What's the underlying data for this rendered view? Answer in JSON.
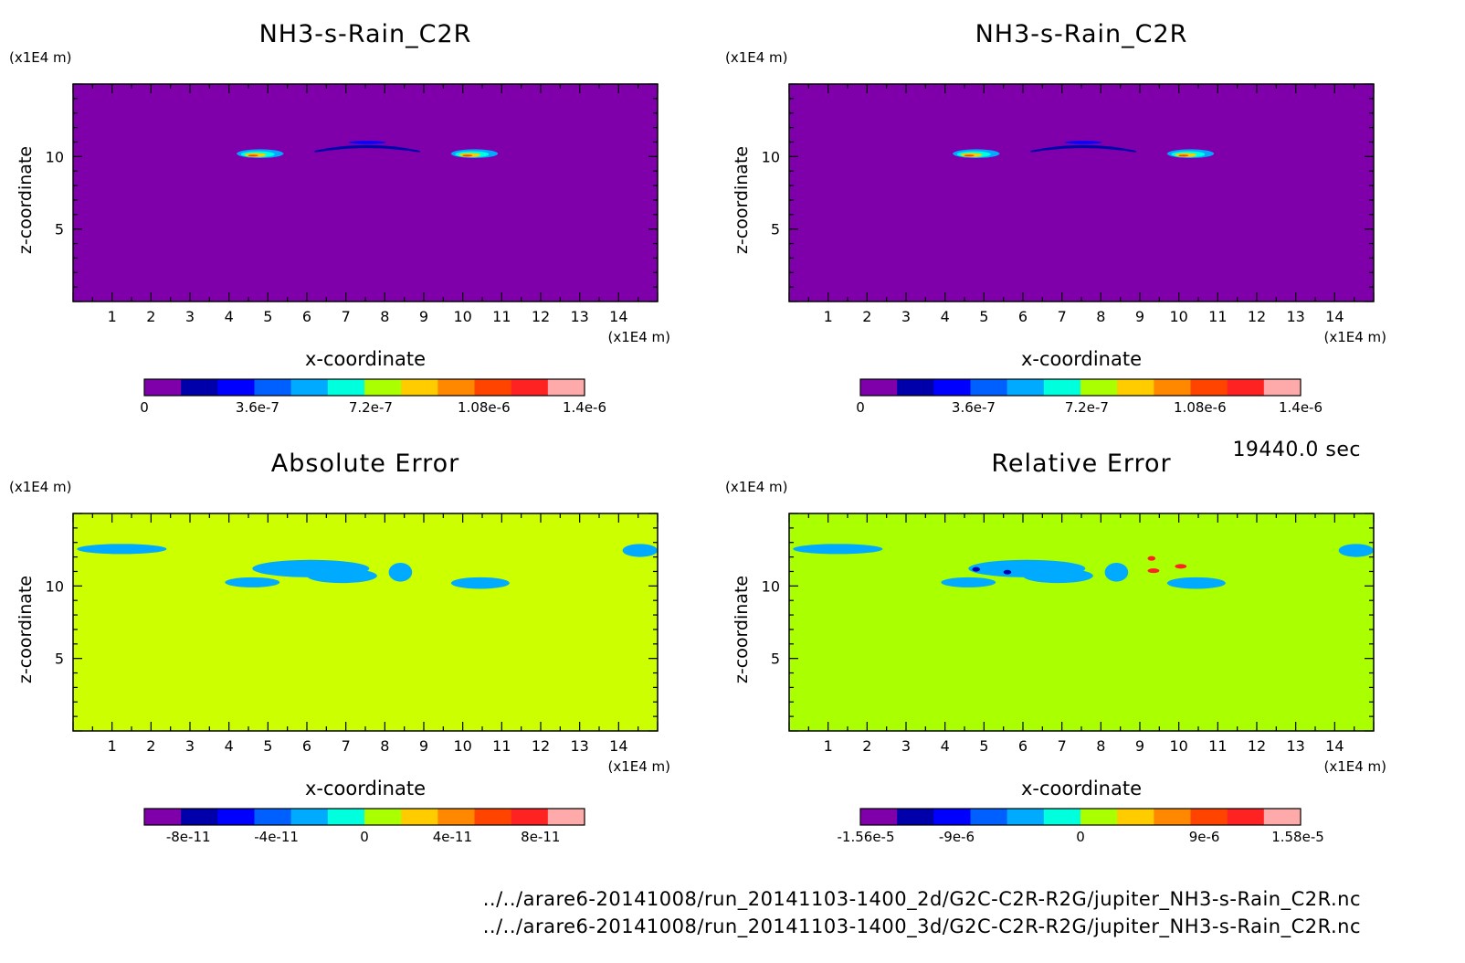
{
  "time_label": "19440.0 sec",
  "files": [
    "../../arare6-20141008/run_20141103-1400_2d/G2C-C2R-R2G/jupiter_NH3-s-Rain_C2R.nc",
    "../../arare6-20141008/run_20141103-1400_3d/G2C-C2R-R2G/jupiter_NH3-s-Rain_C2R.nc"
  ],
  "colors": {
    "frame": "#000000",
    "cmap": [
      "#7f00aa",
      "#0000aa",
      "#0000ff",
      "#0060ff",
      "#00aaff",
      "#00ffdd",
      "#aaff00",
      "#ffcc00",
      "#ff8800",
      "#ff4400",
      "#ff2222",
      "#ffaaaa"
    ]
  },
  "chart_data": [
    {
      "type": "heatmap",
      "title": "NH3-s-Rain_C2R",
      "xlabel": "x-coordinate",
      "ylabel": "z-coordinate",
      "x_unit": "(x1E4 m)",
      "y_unit": "(x1E4 m)",
      "xlim": [
        0,
        15
      ],
      "ylim": [
        0,
        15
      ],
      "xticks": [
        1,
        2,
        3,
        4,
        5,
        6,
        7,
        8,
        9,
        10,
        11,
        12,
        13,
        14
      ],
      "yticks": [
        5,
        10
      ],
      "background_level": 0,
      "features": [
        {
          "shape": "lens",
          "x": [
            4.2,
            5.4
          ],
          "z": [
            9.9,
            10.5
          ],
          "peak": 1.1e-06
        },
        {
          "shape": "band",
          "x": [
            6.2,
            8.9
          ],
          "z": [
            10.4,
            11.0
          ],
          "peak": 3.6e-07
        },
        {
          "shape": "lens",
          "x": [
            9.7,
            10.9
          ],
          "z": [
            9.9,
            10.5
          ],
          "peak": 1.1e-06
        }
      ],
      "colorbar": {
        "min": 0,
        "max": 1.4e-06,
        "labels": [
          {
            "v": 0,
            "t": "0"
          },
          {
            "v": 3.6e-07,
            "t": "3.6e-7"
          },
          {
            "v": 7.2e-07,
            "t": "7.2e-7"
          },
          {
            "v": 1.08e-06,
            "t": "1.08e-6"
          },
          {
            "v": 1.4e-06,
            "t": "1.4e-6"
          }
        ]
      }
    },
    {
      "type": "heatmap",
      "title": "NH3-s-Rain_C2R",
      "xlabel": "x-coordinate",
      "ylabel": "z-coordinate",
      "x_unit": "(x1E4 m)",
      "y_unit": "(x1E4 m)",
      "xlim": [
        0,
        15
      ],
      "ylim": [
        0,
        15
      ],
      "xticks": [
        1,
        2,
        3,
        4,
        5,
        6,
        7,
        8,
        9,
        10,
        11,
        12,
        13,
        14
      ],
      "yticks": [
        5,
        10
      ],
      "background_level": 0,
      "features": [
        {
          "shape": "lens",
          "x": [
            4.2,
            5.4
          ],
          "z": [
            9.9,
            10.5
          ],
          "peak": 1.1e-06
        },
        {
          "shape": "band",
          "x": [
            6.2,
            8.9
          ],
          "z": [
            10.4,
            11.0
          ],
          "peak": 3.6e-07
        },
        {
          "shape": "lens",
          "x": [
            9.7,
            10.9
          ],
          "z": [
            9.9,
            10.5
          ],
          "peak": 1.1e-06
        }
      ],
      "colorbar": {
        "min": 0,
        "max": 1.4e-06,
        "labels": [
          {
            "v": 0,
            "t": "0"
          },
          {
            "v": 3.6e-07,
            "t": "3.6e-7"
          },
          {
            "v": 7.2e-07,
            "t": "7.2e-7"
          },
          {
            "v": 1.08e-06,
            "t": "1.08e-6"
          },
          {
            "v": 1.4e-06,
            "t": "1.4e-6"
          }
        ]
      }
    },
    {
      "type": "heatmap",
      "title": "Absolute Error",
      "xlabel": "x-coordinate",
      "ylabel": "z-coordinate",
      "x_unit": "(x1E4 m)",
      "y_unit": "(x1E4 m)",
      "xlim": [
        0,
        15
      ],
      "ylim": [
        0,
        15
      ],
      "xticks": [
        1,
        2,
        3,
        4,
        5,
        6,
        7,
        8,
        9,
        10,
        11,
        12,
        13,
        14
      ],
      "yticks": [
        5,
        10
      ],
      "background_level": 0,
      "features": [
        {
          "shape": "blob",
          "x": [
            0.1,
            2.4
          ],
          "z": [
            12.2,
            12.9
          ],
          "value": -2e-11
        },
        {
          "shape": "blob",
          "x": [
            3.9,
            5.3
          ],
          "z": [
            9.9,
            10.6
          ],
          "value": -2e-11
        },
        {
          "shape": "blob",
          "x": [
            4.6,
            7.6
          ],
          "z": [
            10.6,
            11.8
          ],
          "value": -2e-11
        },
        {
          "shape": "blob",
          "x": [
            6.0,
            7.8
          ],
          "z": [
            10.2,
            11.2
          ],
          "value": -2e-11
        },
        {
          "shape": "blob",
          "x": [
            8.1,
            8.7
          ],
          "z": [
            10.3,
            11.6
          ],
          "value": -2e-11
        },
        {
          "shape": "blob",
          "x": [
            9.7,
            11.2
          ],
          "z": [
            9.8,
            10.6
          ],
          "value": -2e-11
        },
        {
          "shape": "blob",
          "x": [
            14.1,
            15.0
          ],
          "z": [
            12.0,
            12.9
          ],
          "value": -2e-11
        }
      ],
      "colorbar": {
        "min": -1e-10,
        "max": 1e-10,
        "labels": [
          {
            "v": -8e-11,
            "t": "-8e-11"
          },
          {
            "v": -4e-11,
            "t": "-4e-11"
          },
          {
            "v": 0,
            "t": "0"
          },
          {
            "v": 4e-11,
            "t": "4e-11"
          },
          {
            "v": 8e-11,
            "t": "8e-11"
          }
        ]
      }
    },
    {
      "type": "heatmap",
      "title": "Relative Error",
      "xlabel": "x-coordinate",
      "ylabel": "z-coordinate",
      "x_unit": "(x1E4 m)",
      "y_unit": "(x1E4 m)",
      "xlim": [
        0,
        15
      ],
      "ylim": [
        0,
        15
      ],
      "xticks": [
        1,
        2,
        3,
        4,
        5,
        6,
        7,
        8,
        9,
        10,
        11,
        12,
        13,
        14
      ],
      "yticks": [
        5,
        10
      ],
      "background_level": 0,
      "features": [
        {
          "shape": "blob",
          "x": [
            0.1,
            2.4
          ],
          "z": [
            12.2,
            12.9
          ],
          "value": -4e-06
        },
        {
          "shape": "blob",
          "x": [
            3.9,
            5.3
          ],
          "z": [
            9.9,
            10.6
          ],
          "value": -4e-06
        },
        {
          "shape": "blob",
          "x": [
            4.6,
            7.6
          ],
          "z": [
            10.6,
            11.8
          ],
          "value": -4e-06
        },
        {
          "shape": "blob",
          "x": [
            6.0,
            7.8
          ],
          "z": [
            10.2,
            11.2
          ],
          "value": -4e-06
        },
        {
          "shape": "blob",
          "x": [
            8.1,
            8.7
          ],
          "z": [
            10.3,
            11.6
          ],
          "value": -4e-06
        },
        {
          "shape": "blob",
          "x": [
            9.7,
            11.2
          ],
          "z": [
            9.8,
            10.6
          ],
          "value": -4e-06
        },
        {
          "shape": "blob",
          "x": [
            14.1,
            15.0
          ],
          "z": [
            12.0,
            12.9
          ],
          "value": -4e-06
        },
        {
          "shape": "dot",
          "x": [
            4.7,
            4.9
          ],
          "z": [
            11.0,
            11.3
          ],
          "value": -1.2e-05
        },
        {
          "shape": "dot",
          "x": [
            5.5,
            5.7
          ],
          "z": [
            10.8,
            11.1
          ],
          "value": -1.2e-05
        },
        {
          "shape": "dot",
          "x": [
            9.2,
            9.5
          ],
          "z": [
            10.9,
            11.2
          ],
          "value": 1.3e-05
        },
        {
          "shape": "dot",
          "x": [
            9.9,
            10.2
          ],
          "z": [
            11.2,
            11.5
          ],
          "value": 1.3e-05
        },
        {
          "shape": "dot",
          "x": [
            9.2,
            9.4
          ],
          "z": [
            11.8,
            12.0
          ],
          "value": 1.3e-05
        }
      ],
      "colorbar": {
        "min": -1.6e-05,
        "max": 1.6e-05,
        "labels": [
          {
            "v": -1.56e-05,
            "t": "-1.56e-5"
          },
          {
            "v": -9e-06,
            "t": "-9e-6"
          },
          {
            "v": 0,
            "t": "0"
          },
          {
            "v": 9e-06,
            "t": "9e-6"
          },
          {
            "v": 1.58e-05,
            "t": "1.58e-5"
          }
        ]
      }
    }
  ]
}
